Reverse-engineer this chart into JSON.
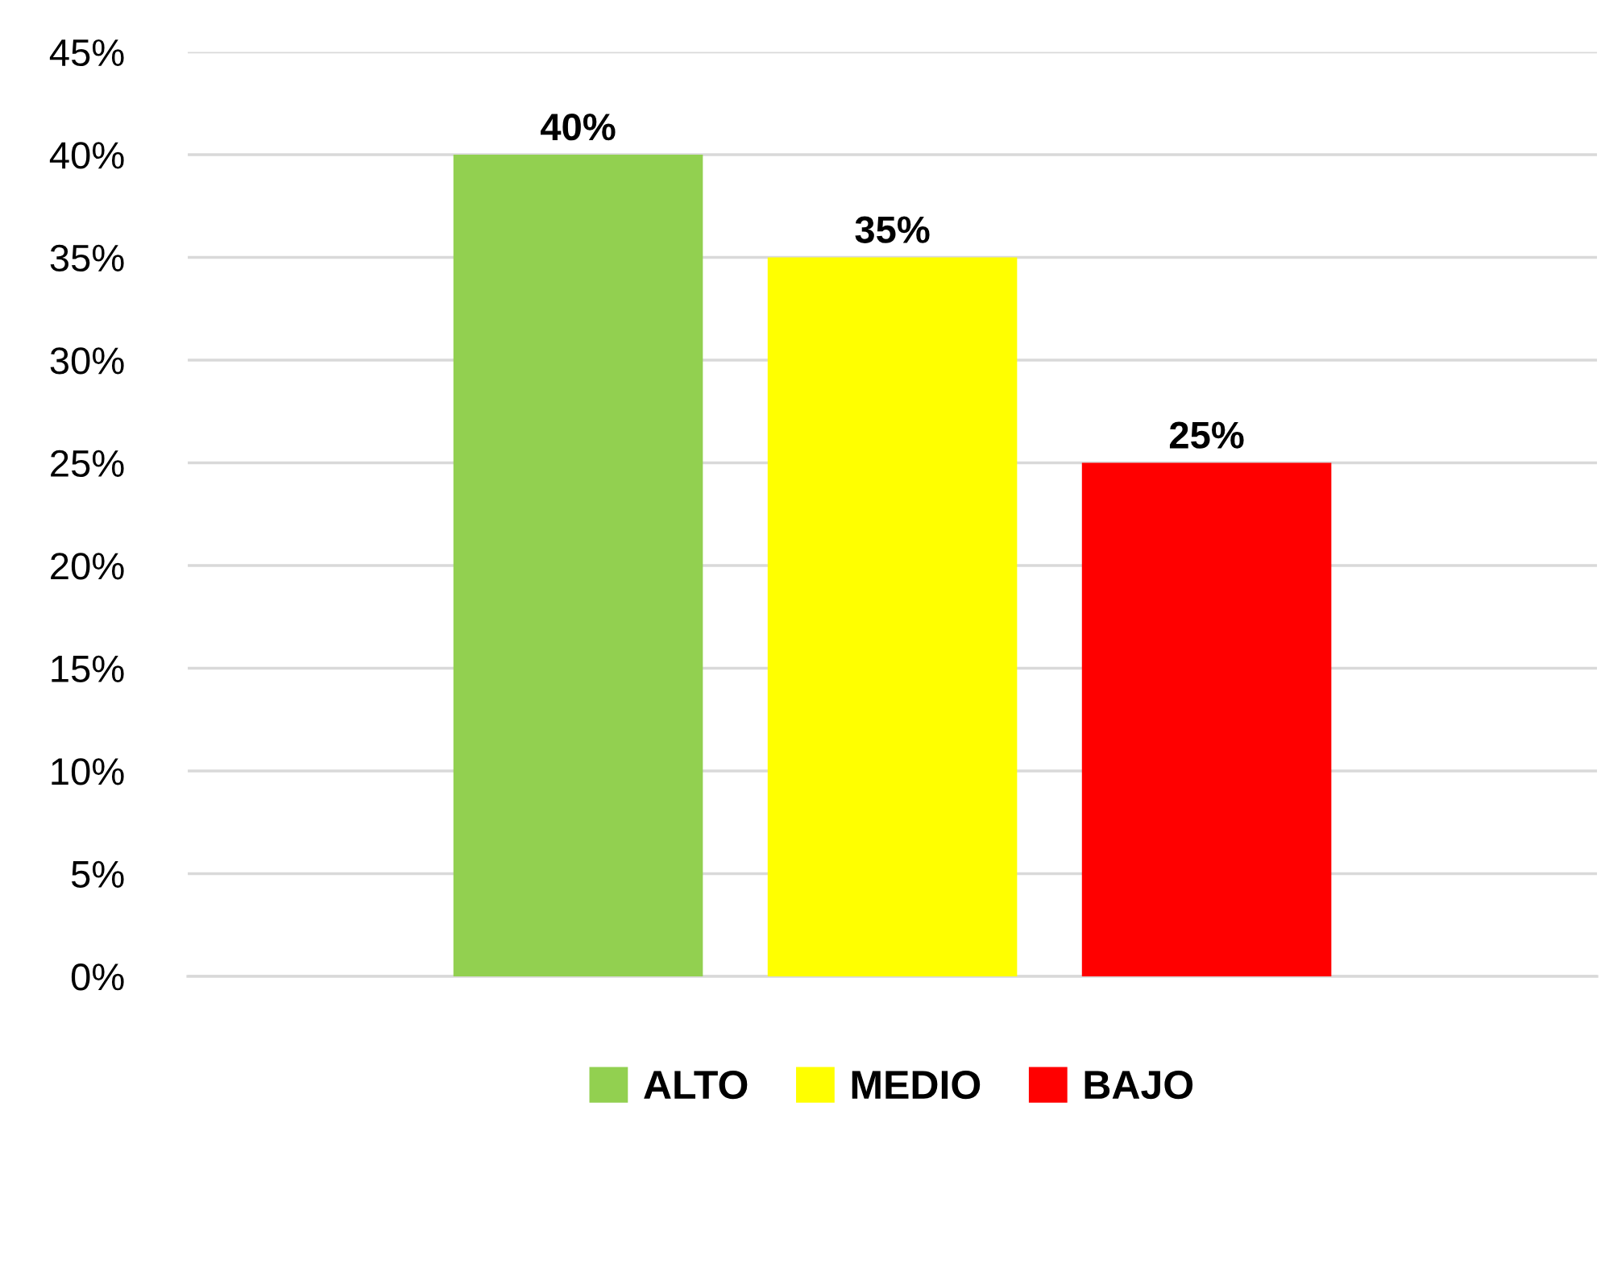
{
  "chart_data": {
    "type": "bar",
    "categories": [
      null
    ],
    "series": [
      {
        "name": "ALTO",
        "color": "#92d050",
        "values": [
          40
        ],
        "value_labels": [
          "40%"
        ]
      },
      {
        "name": "MEDIO",
        "color": "#ffff00",
        "values": [
          35
        ],
        "value_labels": [
          "35%"
        ]
      },
      {
        "name": "BAJO",
        "color": "#ff0000",
        "values": [
          25
        ],
        "value_labels": [
          "25%"
        ]
      }
    ],
    "ylim": [
      0,
      45
    ],
    "yticks": [
      {
        "value": 0,
        "label": "0%"
      },
      {
        "value": 5,
        "label": "5%"
      },
      {
        "value": 10,
        "label": "10%"
      },
      {
        "value": 15,
        "label": "15%"
      },
      {
        "value": 20,
        "label": "20%"
      },
      {
        "value": 25,
        "label": "25%"
      },
      {
        "value": 30,
        "label": "30%"
      },
      {
        "value": 35,
        "label": "35%"
      },
      {
        "value": 40,
        "label": "40%"
      },
      {
        "value": 45,
        "label": "45%"
      }
    ],
    "grid": "y",
    "legend": "bottom"
  }
}
